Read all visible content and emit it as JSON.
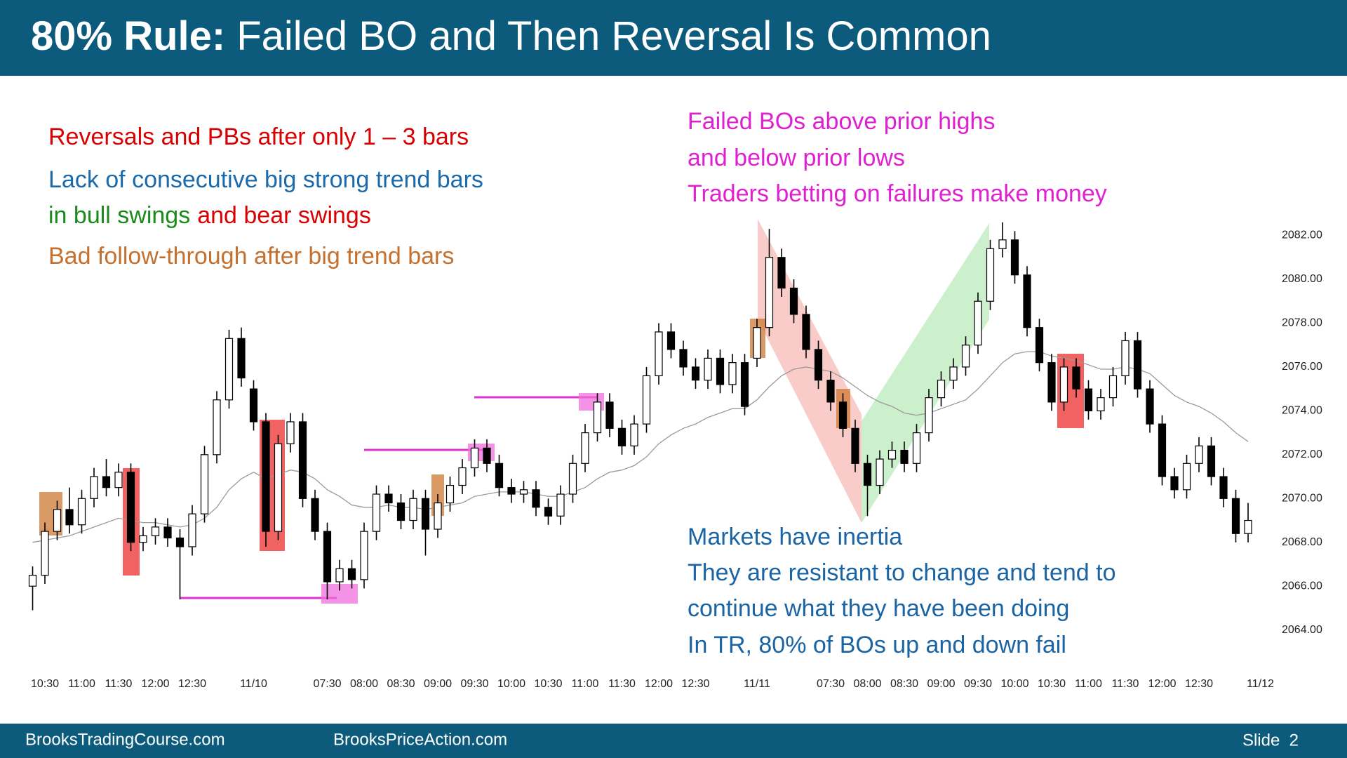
{
  "header": {
    "title_label": "80% Rule:",
    "title": "Failed BO and Then Reversal Is Common"
  },
  "notes_left": {
    "reversals": "Reversals and PBs after only 1 – 3 bars",
    "lack": "Lack of consecutive big strong trend bars",
    "bull": "in bull swings",
    "bear": "and bear swings",
    "follow": "Bad follow-through after big trend bars"
  },
  "notes_right": [
    "Failed BOs above prior highs",
    "and below prior lows",
    "Traders betting on failures make money"
  ],
  "notes_bottom": [
    "Markets have inertia",
    "They are resistant to change and tend to",
    "continue what they have been doing",
    "In TR, 80% of BOs up and down fail"
  ],
  "footer": {
    "left": "BrooksTradingCourse.com",
    "center": "BrooksPriceAction.com",
    "slide": "Slide  2"
  },
  "chart_data": {
    "type": "candlestick",
    "categories": [
      null,
      "10:30",
      null,
      null,
      "11:00",
      null,
      null,
      "11:30",
      null,
      null,
      "12:00",
      null,
      null,
      "12:30",
      null,
      null,
      null,
      null,
      "11/10",
      null,
      null,
      null,
      null,
      null,
      "07:30",
      null,
      null,
      "08:00",
      null,
      null,
      "08:30",
      null,
      null,
      "09:00",
      null,
      null,
      "09:30",
      null,
      null,
      "10:00",
      null,
      null,
      "10:30",
      null,
      null,
      "11:00",
      null,
      null,
      "11:30",
      null,
      null,
      "12:00",
      null,
      null,
      "12:30",
      null,
      null,
      null,
      null,
      "11/11",
      null,
      null,
      null,
      null,
      null,
      "07:30",
      null,
      null,
      "08:00",
      null,
      null,
      "08:30",
      null,
      null,
      "09:00",
      null,
      null,
      "09:30",
      null,
      null,
      "10:00",
      null,
      null,
      "10:30",
      null,
      null,
      "11:00",
      null,
      null,
      "11:30",
      null,
      null,
      "12:00",
      null,
      null,
      "12:30",
      null,
      null,
      null,
      null,
      "11/12"
    ],
    "open": [
      2066,
      2066.5,
      2068.5,
      2069.5,
      2068.8,
      2070,
      2071,
      2070.5,
      2071.2,
      2068,
      2068.3,
      2068.7,
      2068.2,
      2067.8,
      2069.3,
      2072,
      2074.5,
      2077.3,
      2075,
      2073.5,
      2068.5,
      2072.5,
      2073.5,
      2070,
      2068.5,
      2066.2,
      2066.8,
      2066.3,
      2068.5,
      2070.2,
      2069.8,
      2069,
      2070,
      2068.6,
      2069.8,
      2070.6,
      2071.4,
      2072.3,
      2071.6,
      2070.5,
      2070.2,
      2070.4,
      2069.6,
      2069.2,
      2070.2,
      2071.6,
      2073,
      2074.4,
      2073.2,
      2072.4,
      2073.4,
      2075.6,
      2077.6,
      2076.8,
      2076,
      2075.4,
      2076.4,
      2075.2,
      2076.2,
      2076.4,
      2077.8,
      2081,
      2079.6,
      2078.4,
      2076.8,
      2075.4,
      2074.4,
      2073.2,
      2071.6,
      2070.6,
      2071.8,
      2072.2,
      2071.6,
      2073,
      2074.6,
      2075.4,
      2076,
      2077,
      2079,
      2081.4,
      2081.8,
      2080.2,
      2077.8,
      2076.2,
      2074.4,
      2076,
      2075,
      2074,
      2074.6,
      2075.6,
      2077.2,
      2075,
      2073.4,
      2071,
      2070.4,
      2071.6,
      2072.4,
      2071,
      2070,
      2068.4,
      null
    ],
    "high": [
      2066.9,
      2068.9,
      2069.9,
      2070.5,
      2070.4,
      2071.4,
      2071.8,
      2071.6,
      2071.6,
      2068.7,
      2069.1,
      2069.1,
      2068.6,
      2069.7,
      2072.4,
      2074.9,
      2077.7,
      2077.8,
      2075.4,
      2073.9,
      2072.9,
      2073.9,
      2073.9,
      2070.4,
      2068.9,
      2067.2,
      2067.2,
      2068.9,
      2070.6,
      2070.6,
      2070.2,
      2070.4,
      2070.4,
      2070.2,
      2071,
      2071.8,
      2072.7,
      2072.7,
      2072,
      2070.9,
      2070.8,
      2070.8,
      2070,
      2070.6,
      2072,
      2073.4,
      2074.8,
      2074.8,
      2073.6,
      2073.8,
      2076,
      2078,
      2078,
      2077.2,
      2076.4,
      2076.8,
      2076.8,
      2076.6,
      2076.6,
      2078.2,
      2082.3,
      2081.4,
      2080,
      2078.8,
      2077.2,
      2075.8,
      2074.8,
      2073.6,
      2072,
      2072.2,
      2072.6,
      2072.6,
      2073.4,
      2075,
      2075.8,
      2076.4,
      2077.4,
      2079.4,
      2081.8,
      2082.6,
      2082.2,
      2080.6,
      2078.2,
      2076.6,
      2076.4,
      2076.4,
      2075.4,
      2075,
      2076,
      2077.6,
      2077.6,
      2075.4,
      2073.8,
      2071.4,
      2072,
      2072.8,
      2072.8,
      2071.4,
      2070.4,
      2069.8,
      null
    ],
    "low": [
      2064.9,
      2066.1,
      2068.1,
      2068.4,
      2068.4,
      2069.6,
      2070.1,
      2070.1,
      2067.6,
      2067.6,
      2067.9,
      2067.8,
      2065.4,
      2067.4,
      2068.9,
      2071.6,
      2074.1,
      2075.1,
      2073.1,
      2067.8,
      2068.1,
      2072.1,
      2069.6,
      2068.1,
      2065.4,
      2065.8,
      2065.9,
      2065.9,
      2068.1,
      2069.4,
      2068.6,
      2068.6,
      2067.4,
      2068.2,
      2069.4,
      2070.2,
      2071,
      2071.2,
      2070.1,
      2069.8,
      2069.8,
      2069.2,
      2068.8,
      2068.8,
      2069.8,
      2071.2,
      2072.6,
      2072.8,
      2072,
      2072,
      2073,
      2075.2,
      2076.4,
      2075.6,
      2075,
      2075,
      2074.8,
      2074.8,
      2073.8,
      2076,
      2077.4,
      2079.2,
      2078,
      2076.4,
      2075,
      2074,
      2072.8,
      2071.2,
      2069.2,
      2070.2,
      2071.4,
      2071.2,
      2071.2,
      2072.6,
      2074.2,
      2075,
      2075.6,
      2076.6,
      2078.6,
      2081,
      2079.8,
      2077.4,
      2075.8,
      2074,
      2074,
      2074.6,
      2073.6,
      2073.6,
      2074.2,
      2075.2,
      2074.6,
      2073,
      2070.6,
      2070,
      2070,
      2071.2,
      2070.6,
      2069.6,
      2068,
      2068,
      null
    ],
    "close": [
      2066.5,
      2068.5,
      2069.5,
      2068.8,
      2070,
      2071,
      2070.5,
      2071.2,
      2068,
      2068.3,
      2068.7,
      2068.2,
      2067.8,
      2069.3,
      2072,
      2074.5,
      2077.3,
      2075.5,
      2073.5,
      2068.5,
      2072.5,
      2073.5,
      2070,
      2068.5,
      2066.2,
      2066.8,
      2066.3,
      2068.5,
      2070.2,
      2069.8,
      2069,
      2070,
      2068.6,
      2069.8,
      2070.6,
      2071.4,
      2072.3,
      2071.6,
      2070.5,
      2070.2,
      2070.4,
      2069.6,
      2069.2,
      2070.2,
      2071.6,
      2073,
      2074.4,
      2073.2,
      2072.4,
      2073.4,
      2075.6,
      2077.6,
      2076.8,
      2076,
      2075.4,
      2076.4,
      2075.2,
      2076.2,
      2074.2,
      2077.8,
      2081,
      2079.6,
      2078.4,
      2076.8,
      2075.4,
      2074.4,
      2073.2,
      2071.6,
      2070.6,
      2071.8,
      2072.2,
      2071.6,
      2073,
      2074.6,
      2075.4,
      2076,
      2077,
      2079,
      2081.4,
      2081.8,
      2080.2,
      2077.8,
      2076.2,
      2074.4,
      2076,
      2075,
      2074,
      2074.6,
      2075.6,
      2077.2,
      2075,
      2073.4,
      2071,
      2070.4,
      2071.6,
      2072.4,
      2071,
      2070,
      2068.4,
      2069,
      null
    ],
    "ma": [
      2068,
      2068.1,
      2068.2,
      2068.3,
      2068.5,
      2068.7,
      2068.9,
      2069.1,
      2069,
      2068.9,
      2068.9,
      2068.8,
      2068.7,
      2068.8,
      2069.1,
      2069.6,
      2070.4,
      2070.9,
      2071.2,
      2070.9,
      2071.1,
      2071.3,
      2071.2,
      2070.9,
      2070.4,
      2070.1,
      2069.7,
      2069.6,
      2069.6,
      2069.7,
      2069.6,
      2069.6,
      2069.5,
      2069.6,
      2069.7,
      2069.8,
      2070.1,
      2070.2,
      2070.3,
      2070.3,
      2070.3,
      2070.2,
      2070.1,
      2070.1,
      2070.3,
      2070.5,
      2070.9,
      2071.2,
      2071.3,
      2071.5,
      2071.9,
      2072.5,
      2072.9,
      2073.2,
      2073.4,
      2073.7,
      2073.9,
      2074.1,
      2074.1,
      2074.5,
      2075.1,
      2075.6,
      2075.9,
      2076,
      2075.9,
      2075.8,
      2075.5,
      2075.1,
      2074.7,
      2074.4,
      2074.2,
      2073.9,
      2073.8,
      2073.9,
      2074.1,
      2074.3,
      2074.5,
      2075,
      2075.6,
      2076.2,
      2076.6,
      2076.7,
      2076.7,
      2076.5,
      2076.4,
      2076.3,
      2076.1,
      2075.9,
      2075.9,
      2076,
      2075.9,
      2075.7,
      2075.2,
      2074.7,
      2074.4,
      2074.2,
      2073.9,
      2073.5,
      2073,
      2072.6,
      null
    ],
    "up_color": "#ffffff",
    "down_color": "#000000",
    "ma_color": "#9a9a9a",
    "ylim": [
      2062.5,
      2083
    ],
    "yticks": [
      {
        "value": 2064,
        "label": "2064.00"
      },
      {
        "value": 2066,
        "label": "2066.00"
      },
      {
        "value": 2068,
        "label": "2068.00"
      },
      {
        "value": 2070,
        "label": "2070.00"
      },
      {
        "value": 2072,
        "label": "2072.00"
      },
      {
        "value": 2074,
        "label": "2074.00"
      },
      {
        "value": 2076,
        "label": "2076.00"
      },
      {
        "value": 2078,
        "label": "2078.00"
      },
      {
        "value": 2080,
        "label": "2080.00"
      },
      {
        "value": 2082,
        "label": "2082.00"
      }
    ],
    "grid": false
  }
}
